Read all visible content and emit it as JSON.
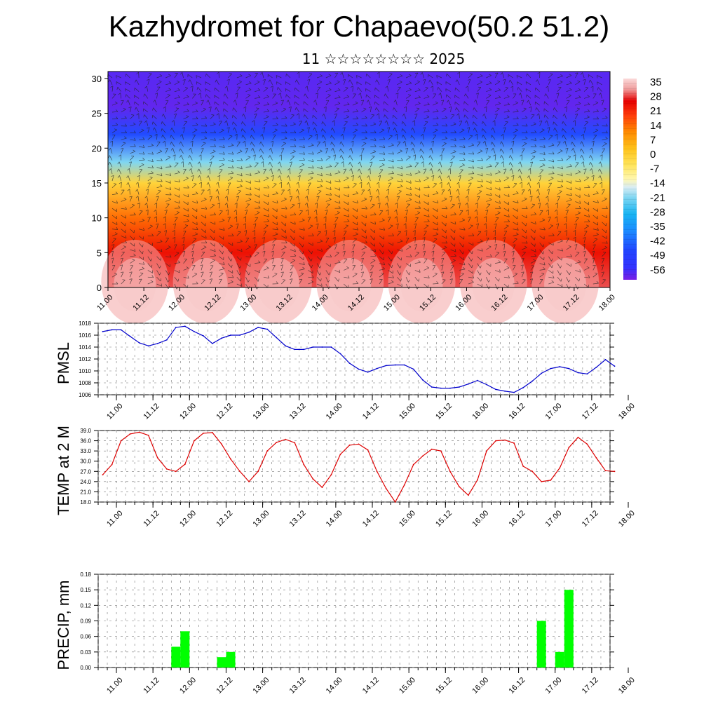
{
  "title": "Kazhydromet for Chapaevo(50.2 51.2)",
  "subtitle": "11 ☆☆☆☆☆☆☆☆ 2025",
  "time_ticks": [
    "11.00",
    "11.12",
    "12.00",
    "12.12",
    "13.00",
    "13.12",
    "14.00",
    "14.12",
    "15.00",
    "15.12",
    "16.00",
    "16.12",
    "17.00",
    "17.12",
    "18.00"
  ],
  "chart_data": [
    {
      "type": "heatmap",
      "y_ticks": [
        "0",
        "5",
        "10",
        "15",
        "20",
        "25",
        "30"
      ],
      "ylim": [
        0,
        31
      ],
      "colorbar_labels": [
        "35",
        "28",
        "21",
        "14",
        "7",
        "0",
        "-7",
        "-14",
        "-21",
        "-28",
        "-35",
        "-42",
        "-49",
        "-56"
      ],
      "colorbar_range": [
        -60,
        38
      ],
      "layers": [
        {
          "level": 0,
          "temp": 30
        },
        {
          "level": 5,
          "temp": 25
        },
        {
          "level": 10,
          "temp": 15
        },
        {
          "level": 15,
          "temp": 0
        },
        {
          "level": 18,
          "temp": -20
        },
        {
          "level": 22,
          "temp": -45
        },
        {
          "level": 26,
          "temp": -58
        },
        {
          "level": 31,
          "temp": -57
        }
      ]
    },
    {
      "type": "line",
      "ylabel": "PMSL",
      "ylim": [
        1006,
        1018
      ],
      "y_ticks": [
        "1006",
        "1008",
        "1010",
        "1012",
        "1014",
        "1016",
        "1018"
      ],
      "color": "#0000cc",
      "values": [
        1016.6,
        1016.9,
        1016.9,
        1015.8,
        1014.7,
        1014.2,
        1014.6,
        1015.2,
        1017.3,
        1017.5,
        1016.6,
        1015.9,
        1014.6,
        1015.5,
        1016.0,
        1016.0,
        1016.5,
        1017.3,
        1017.0,
        1015.6,
        1014.2,
        1013.6,
        1013.6,
        1014.0,
        1014.0,
        1014.0,
        1012.9,
        1011.3,
        1010.3,
        1009.8,
        1010.4,
        1010.9,
        1011.0,
        1011.0,
        1010.3,
        1008.5,
        1007.3,
        1007.1,
        1007.1,
        1007.3,
        1007.8,
        1008.4,
        1007.7,
        1006.9,
        1006.6,
        1006.4,
        1007.2,
        1008.3,
        1009.6,
        1010.4,
        1010.7,
        1010.4,
        1009.7,
        1009.5,
        1010.6,
        1011.9,
        1010.8
      ]
    },
    {
      "type": "line",
      "ylabel": "TEMP at 2 M",
      "ylim": [
        18,
        39
      ],
      "y_ticks": [
        "18.0",
        "21.0",
        "24.0",
        "27.0",
        "30.0",
        "33.0",
        "36.0",
        "39.0"
      ],
      "color": "#dd0000",
      "values": [
        26.0,
        29.0,
        36.0,
        38.0,
        38.5,
        37.6,
        31.0,
        27.7,
        27.0,
        29.1,
        36.0,
        38.2,
        38.4,
        35.0,
        30.6,
        27.0,
        24.0,
        27.0,
        33.0,
        35.5,
        36.4,
        35.4,
        29.0,
        24.8,
        22.3,
        26.0,
        32.0,
        34.7,
        35.0,
        33.3,
        27.0,
        22.0,
        18.0,
        23.0,
        29.0,
        31.5,
        33.5,
        33.0,
        27.0,
        22.5,
        20.0,
        24.5,
        33.0,
        36.0,
        36.2,
        35.3,
        28.5,
        27.0,
        24.0,
        24.4,
        28.0,
        34.0,
        37.0,
        35.0,
        31.0,
        27.2,
        27.0
      ]
    },
    {
      "type": "bar",
      "ylabel": "PRECIP, mm",
      "ylim": [
        0,
        0.18
      ],
      "y_ticks": [
        "0.00",
        "0.03",
        "0.06",
        "0.09",
        "0.12",
        "0.15",
        "0.18"
      ],
      "color": "#00ff00",
      "bars": [
        {
          "x": 8.5,
          "value": 0.04
        },
        {
          "x": 9.5,
          "value": 0.07
        },
        {
          "x": 13.5,
          "value": 0.02
        },
        {
          "x": 14.5,
          "value": 0.03
        },
        {
          "x": 48.5,
          "value": 0.09
        },
        {
          "x": 50.5,
          "value": 0.03
        },
        {
          "x": 51.5,
          "value": 0.15
        }
      ]
    }
  ]
}
